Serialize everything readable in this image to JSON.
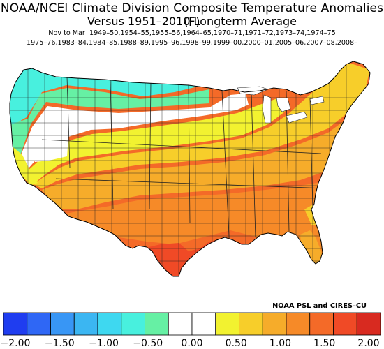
{
  "title_line1": "NOAA/NCEI Climate Division Composite Temperature Anomalies (F)",
  "title_line2": "Versus 1951–2010 Longterm Average",
  "season_label": "Nov to Mar",
  "years_line1": "1949–50,1954–55,1955–56,1964–65,1970–71,1971–72,1973–74,1974–75",
  "years_line2": "1975–76,1983–84,1984–85,1988–89,1995–96,1998–99,1999–00,2000–01,2005–06,2007–08,2008–",
  "credit": "NOAA PSL and CIRES–CU",
  "colorbar": {
    "colors": [
      "#1f3df0",
      "#2f67f5",
      "#3896f5",
      "#3bb6f2",
      "#3ed8f0",
      "#48f0de",
      "#66f0a4",
      "#ffffff",
      "#ffffff",
      "#f2f230",
      "#f7ce2a",
      "#f6ac2a",
      "#f68a28",
      "#f46a28",
      "#f04a26",
      "#d82a20"
    ],
    "tick_labels": [
      "−2.00",
      "−1.50",
      "−1.00",
      "−0.50",
      "0.00",
      "0.50",
      "1.00",
      "1.50",
      "2.00"
    ]
  },
  "map_palette": {
    "teal": "#48f0de",
    "seafoam": "#66f0a4",
    "white": "#ffffff",
    "yellow": "#f2f230",
    "gold": "#f7ce2a",
    "light_orange": "#f6ac2a",
    "orange": "#f68a28",
    "dark_orange": "#f46a28",
    "red_orange": "#f04a26"
  }
}
